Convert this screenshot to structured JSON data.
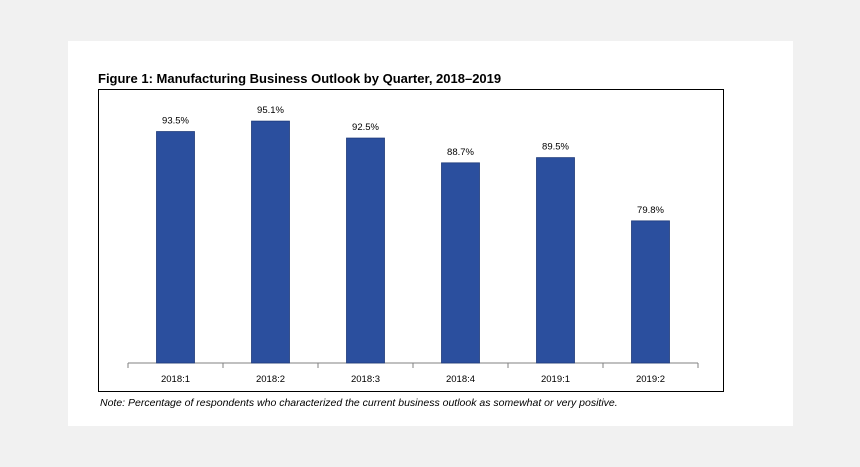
{
  "chart_data": {
    "type": "bar",
    "title": "Figure 1: Manufacturing Business Outlook by Quarter, 2018–2019",
    "categories": [
      "2018:1",
      "2018:2",
      "2018:3",
      "2018:4",
      "2019:1",
      "2019:2"
    ],
    "values": [
      93.5,
      95.1,
      92.5,
      88.7,
      89.5,
      79.8
    ],
    "data_labels": [
      "93.5%",
      "95.1%",
      "92.5%",
      "88.7%",
      "89.5%",
      "79.8%"
    ],
    "xlabel": "",
    "ylabel": "",
    "ylim": [
      58,
      100
    ],
    "grid": false,
    "bar_color": "#2b4f9e",
    "note": "Note: Percentage of respondents who characterized the current business outlook as somewhat or very positive."
  }
}
